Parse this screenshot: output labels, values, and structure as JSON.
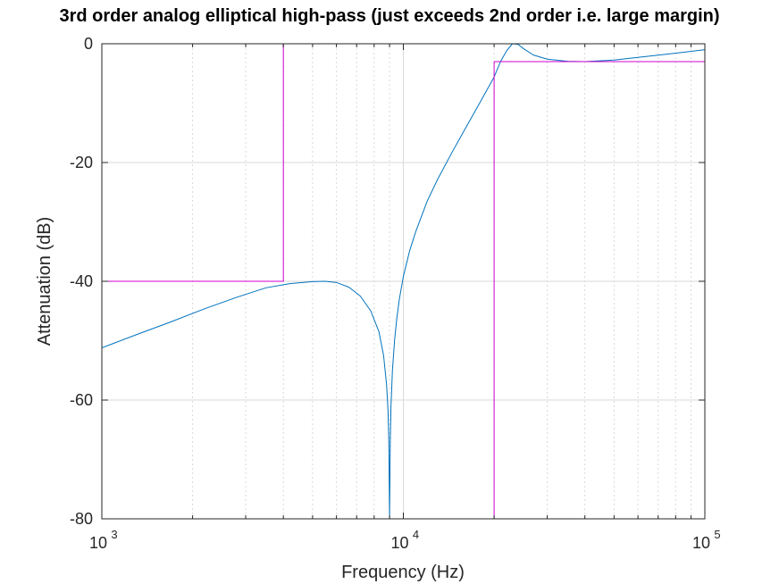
{
  "chart_data": {
    "type": "line",
    "title": "3rd order analog elliptical high-pass (just exceeds 2nd order i.e. large margin)",
    "xlabel": "Frequency (Hz)",
    "ylabel": "Attenuation (dB)",
    "xscale": "log",
    "xlim": [
      1000,
      100000
    ],
    "ylim": [
      -80,
      0
    ],
    "grid": true,
    "x_ticks": [
      {
        "base": "10",
        "exp": "3",
        "value": 1000
      },
      {
        "base": "10",
        "exp": "4",
        "value": 10000
      },
      {
        "base": "10",
        "exp": "5",
        "value": 100000
      }
    ],
    "y_ticks": [
      {
        "label": "0",
        "value": 0
      },
      {
        "label": "-20",
        "value": -20
      },
      {
        "label": "-40",
        "value": -40
      },
      {
        "label": "-60",
        "value": -60
      },
      {
        "label": "-80",
        "value": -80
      }
    ],
    "series": [
      {
        "color": "#0072bd",
        "x": [
          1000,
          1300,
          1700,
          2200,
          2800,
          3500,
          4200,
          5000,
          5500,
          6000,
          6600,
          7200,
          7800,
          8300,
          8600,
          8800,
          8900,
          8950,
          9000,
          9050,
          9100,
          9200,
          9350,
          9500,
          9700,
          10000,
          10500,
          11000,
          12000,
          13000,
          14500,
          16000,
          18000,
          20000,
          21000,
          22000,
          23000,
          24000,
          25000,
          27000,
          30000,
          35000,
          40000,
          50000,
          60000,
          75000,
          100000
        ],
        "y": [
          -51.2,
          -49.0,
          -46.8,
          -44.6,
          -42.7,
          -41.1,
          -40.4,
          -40.05,
          -40.0,
          -40.2,
          -41.0,
          -42.5,
          -45.0,
          -48.5,
          -52.5,
          -57.5,
          -62.0,
          -67.0,
          -80.0,
          -67.0,
          -61.0,
          -55.0,
          -50.0,
          -46.5,
          -43.0,
          -39.2,
          -34.8,
          -31.6,
          -26.5,
          -22.8,
          -18.3,
          -14.4,
          -9.8,
          -5.6,
          -3.0,
          -1.2,
          0.0,
          -0.1,
          -0.8,
          -1.9,
          -2.6,
          -2.95,
          -3.0,
          -2.75,
          -2.3,
          -1.75,
          -1.0
        ]
      },
      {
        "color": "#d000d0",
        "x": [
          1000,
          4000,
          4000,
          100000
        ],
        "y": [
          -40,
          -40,
          0,
          0
        ]
      },
      {
        "color": "#d000d0",
        "x": [
          20000,
          20000,
          100000
        ],
        "y": [
          -80,
          -3,
          -3
        ]
      }
    ]
  }
}
